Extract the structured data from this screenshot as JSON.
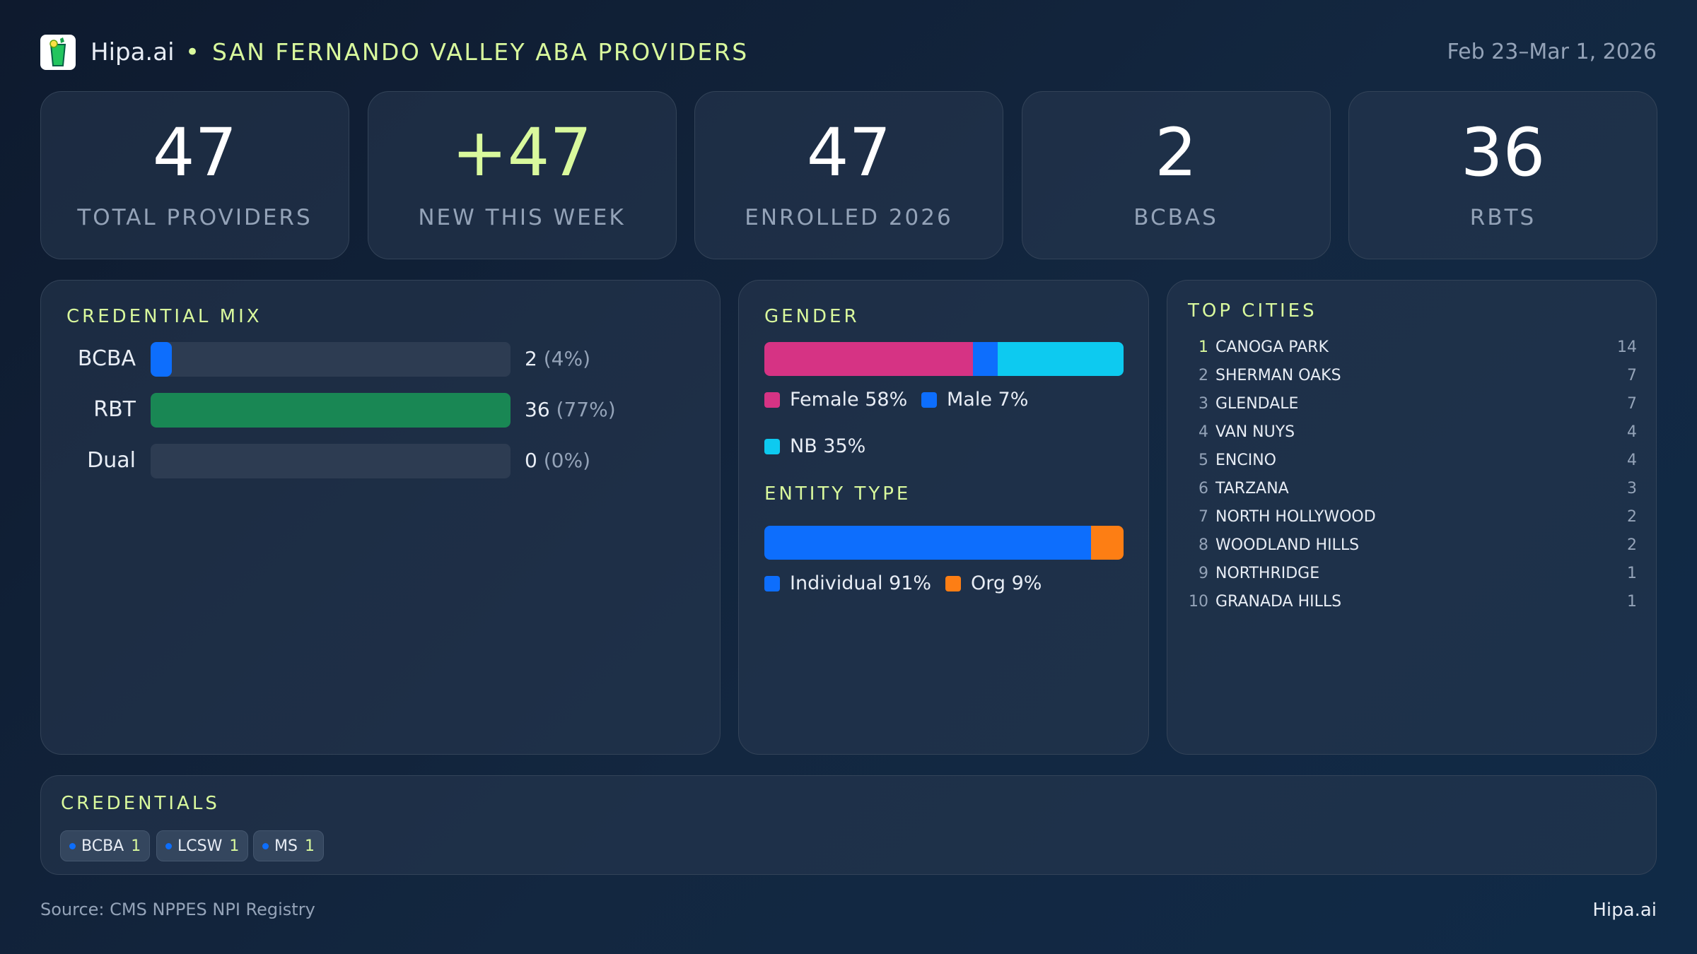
{
  "header": {
    "brand": "Hipa.ai",
    "separator": "•",
    "title": "SAN FERNANDO VALLEY ABA PROVIDERS",
    "date_range": "Feb 23–Mar 1, 2026",
    "logo_icon": "mojito-glass-icon"
  },
  "kpis": [
    {
      "value": "47",
      "label": "TOTAL PROVIDERS"
    },
    {
      "value": "+47",
      "label": "NEW THIS WEEK",
      "accent": "#d9f99d"
    },
    {
      "value": "47",
      "label": "ENROLLED 2026"
    },
    {
      "value": "2",
      "label": "BCBAS"
    },
    {
      "value": "36",
      "label": "RBTS"
    }
  ],
  "credential_mix": {
    "title": "CREDENTIAL MIX",
    "rows": [
      {
        "label": "BCBA",
        "count": "2",
        "pct": "(4%)",
        "percent": 4,
        "color": "#0d6efd"
      },
      {
        "label": "RBT",
        "count": "36",
        "pct": "(77%)",
        "percent": 77,
        "color": "#198754"
      },
      {
        "label": "Dual",
        "count": "0",
        "pct": "(0%)",
        "percent": 0,
        "color": "#2d3c52"
      }
    ]
  },
  "gender": {
    "title": "GENDER",
    "segments": [
      {
        "label": "Female 58%",
        "percent": 58,
        "color": "#d63384"
      },
      {
        "label": "Male 7%",
        "percent": 7,
        "color": "#0d6efd"
      },
      {
        "label": "NB 35%",
        "percent": 35,
        "color": "#0dcaf0"
      }
    ]
  },
  "entity": {
    "title": "ENTITY TYPE",
    "segments": [
      {
        "label": "Individual 91%",
        "percent": 91,
        "color": "#0d6efd"
      },
      {
        "label": "Org 9%",
        "percent": 9,
        "color": "#fd7e14"
      }
    ]
  },
  "cities": {
    "title": "TOP CITIES",
    "items": [
      {
        "rank": "1",
        "name": "CANOGA PARK",
        "count": "14"
      },
      {
        "rank": "2",
        "name": "SHERMAN OAKS",
        "count": "7"
      },
      {
        "rank": "3",
        "name": "GLENDALE",
        "count": "7"
      },
      {
        "rank": "4",
        "name": "VAN NUYS",
        "count": "4"
      },
      {
        "rank": "5",
        "name": "ENCINO",
        "count": "4"
      },
      {
        "rank": "6",
        "name": "TARZANA",
        "count": "3"
      },
      {
        "rank": "7",
        "name": "NORTH HOLLYWOOD",
        "count": "2"
      },
      {
        "rank": "8",
        "name": "WOODLAND HILLS",
        "count": "2"
      },
      {
        "rank": "9",
        "name": "NORTHRIDGE",
        "count": "1"
      },
      {
        "rank": "10",
        "name": "GRANADA HILLS",
        "count": "1"
      }
    ]
  },
  "credentials": {
    "title": "CREDENTIALS",
    "chips": [
      {
        "label": "BCBA",
        "count": "1"
      },
      {
        "label": "LCSW",
        "count": "1"
      },
      {
        "label": "MS",
        "count": "1"
      }
    ]
  },
  "footer": {
    "source": "Source: CMS NPPES NPI Registry",
    "brand": "Hipa.ai"
  }
}
